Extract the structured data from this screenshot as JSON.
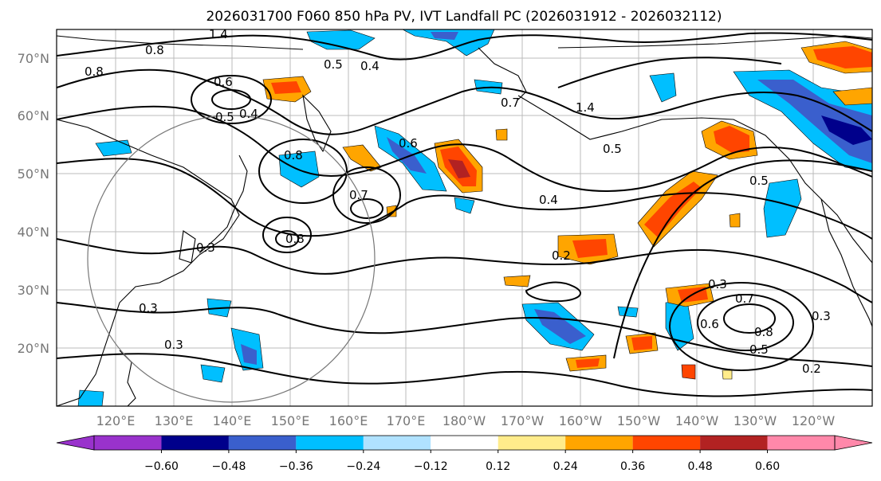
{
  "title": "2026031700 F060 850 hPa PV, IVT Landfall PC (2026031912 - 2026032112)",
  "map": {
    "lat_labels": [
      "70°N",
      "60°N",
      "50°N",
      "40°N",
      "30°N",
      "20°N"
    ],
    "lon_labels": [
      "120°E",
      "130°E",
      "140°E",
      "150°E",
      "160°E",
      "170°E",
      "180°W",
      "170°W",
      "160°W",
      "150°W",
      "140°W",
      "130°W",
      "120°W"
    ],
    "contour_labels": [
      "1.4",
      "0.8",
      "0.8",
      "0.5",
      "0.4",
      "0.6",
      "0.5",
      "0.4",
      "0.8",
      "0.7",
      "0.6",
      "0.8",
      "0.3",
      "0.3",
      "0.3",
      "0.4",
      "0.2",
      "0.5",
      "1.4",
      "0.7",
      "0.5",
      "0.3",
      "0.7",
      "0.6",
      "0.8",
      "0.5",
      "0.2",
      "0.3"
    ]
  },
  "colorbar": {
    "colors": [
      "#9932cc",
      "#00008b",
      "#3a5fcd",
      "#00bfff",
      "#b0e2ff",
      "#ffffff",
      "#ffec8b",
      "#ffa500",
      "#ff4500",
      "#b22222",
      "#ff88aa"
    ],
    "labels": [
      "−0.60",
      "−0.48",
      "−0.36",
      "−0.24",
      "−0.12",
      "0.12",
      "0.24",
      "0.36",
      "0.48",
      "0.60"
    ]
  }
}
